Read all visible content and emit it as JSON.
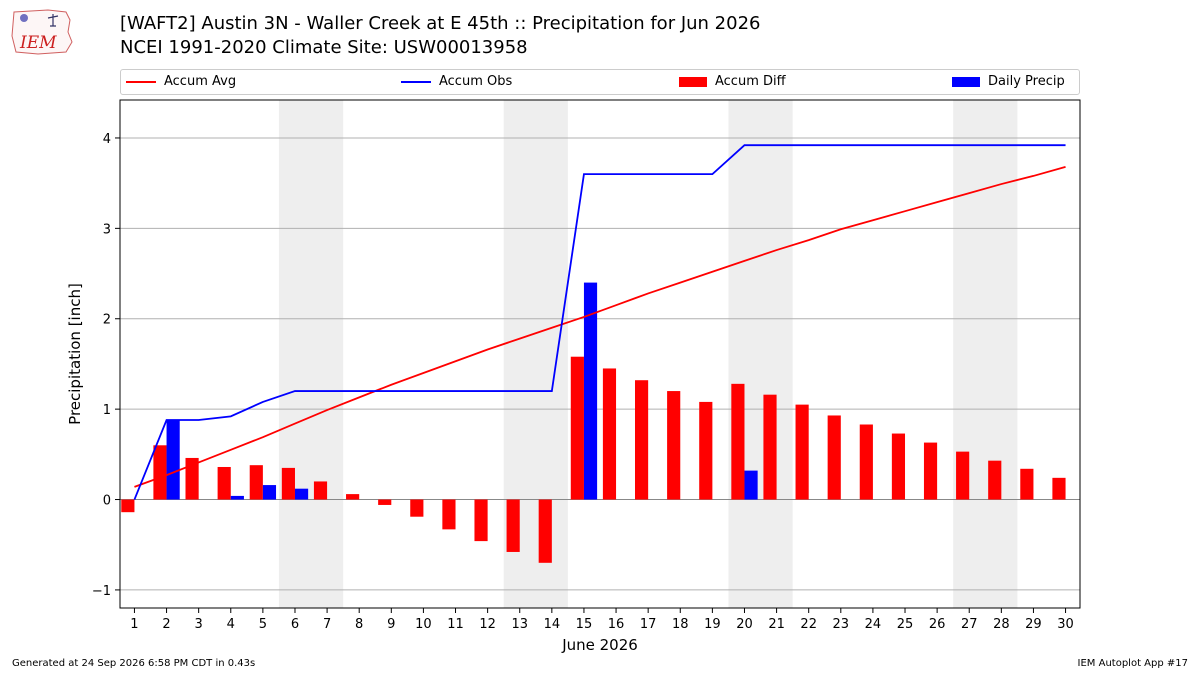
{
  "title_line1": "[WAFT2] Austin 3N - Waller Creek at E 45th :: Precipitation for Jun 2026",
  "title_line2": "NCEI 1991-2020 Climate Site: USW00013958",
  "logo_text": "IEM",
  "footer_left": "Generated at 24 Sep 2026 6:58 PM CDT in 0.43s",
  "footer_right": "IEM Autoplot App #17",
  "colors": {
    "avg": "#ff0000",
    "obs": "#0000ff",
    "diff": "#ff0000",
    "daily": "#0000ff",
    "weekend": "#eeeeee",
    "grid": "#b0b0b0"
  },
  "legend": [
    {
      "label": "Accum Avg",
      "kind": "line",
      "color": "#ff0000"
    },
    {
      "label": "Accum Obs",
      "kind": "line",
      "color": "#0000ff"
    },
    {
      "label": "Accum Diff",
      "kind": "box",
      "color": "#ff0000"
    },
    {
      "label": "Daily Precip",
      "kind": "box",
      "color": "#0000ff"
    }
  ],
  "chart_data": {
    "type": "bar",
    "xlabel": "June 2026",
    "ylabel": "Precipitation [inch]",
    "ylim": [
      -1.2,
      4.42
    ],
    "yticks": [
      -1,
      0,
      1,
      2,
      3,
      4
    ],
    "grid": true,
    "legend_position": "top",
    "weekend_shading_days": [
      6,
      7,
      13,
      14,
      20,
      21,
      27,
      28
    ],
    "days": [
      1,
      2,
      3,
      4,
      5,
      6,
      7,
      8,
      9,
      10,
      11,
      12,
      13,
      14,
      15,
      16,
      17,
      18,
      19,
      20,
      21,
      22,
      23,
      24,
      25,
      26,
      27,
      28,
      29,
      30
    ],
    "series": [
      {
        "name": "Accum Avg",
        "kind": "line",
        "values": [
          0.14,
          0.27,
          0.41,
          0.55,
          0.69,
          0.84,
          0.99,
          1.13,
          1.27,
          1.4,
          1.53,
          1.66,
          1.78,
          1.9,
          2.02,
          2.15,
          2.28,
          2.4,
          2.52,
          2.64,
          2.76,
          2.87,
          2.99,
          3.09,
          3.19,
          3.29,
          3.39,
          3.49,
          3.58,
          3.68
        ]
      },
      {
        "name": "Accum Obs",
        "kind": "line",
        "values": [
          0.0,
          0.88,
          0.88,
          0.92,
          1.08,
          1.2,
          1.2,
          1.2,
          1.2,
          1.2,
          1.2,
          1.2,
          1.2,
          1.2,
          3.6,
          3.6,
          3.6,
          3.6,
          3.6,
          3.92,
          3.92,
          3.92,
          3.92,
          3.92,
          3.92,
          3.92,
          3.92,
          3.92,
          3.92,
          3.92
        ]
      },
      {
        "name": "Accum Diff",
        "kind": "bar",
        "values": [
          -0.14,
          0.6,
          0.46,
          0.36,
          0.38,
          0.35,
          0.2,
          0.06,
          -0.06,
          -0.19,
          -0.33,
          -0.46,
          -0.58,
          -0.7,
          1.58,
          1.45,
          1.32,
          1.2,
          1.08,
          1.28,
          1.16,
          1.05,
          0.93,
          0.83,
          0.73,
          0.63,
          0.53,
          0.43,
          0.34,
          0.24
        ]
      },
      {
        "name": "Daily Precip",
        "kind": "bar",
        "values": [
          0.0,
          0.88,
          0.0,
          0.04,
          0.16,
          0.12,
          0.0,
          0.0,
          0.0,
          0.0,
          0.0,
          0.0,
          0.0,
          0.0,
          2.4,
          0.0,
          0.0,
          0.0,
          0.0,
          0.32,
          0.0,
          0.0,
          0.0,
          0.0,
          0.0,
          0.0,
          0.0,
          0.0,
          0.0,
          0.0
        ]
      }
    ]
  }
}
